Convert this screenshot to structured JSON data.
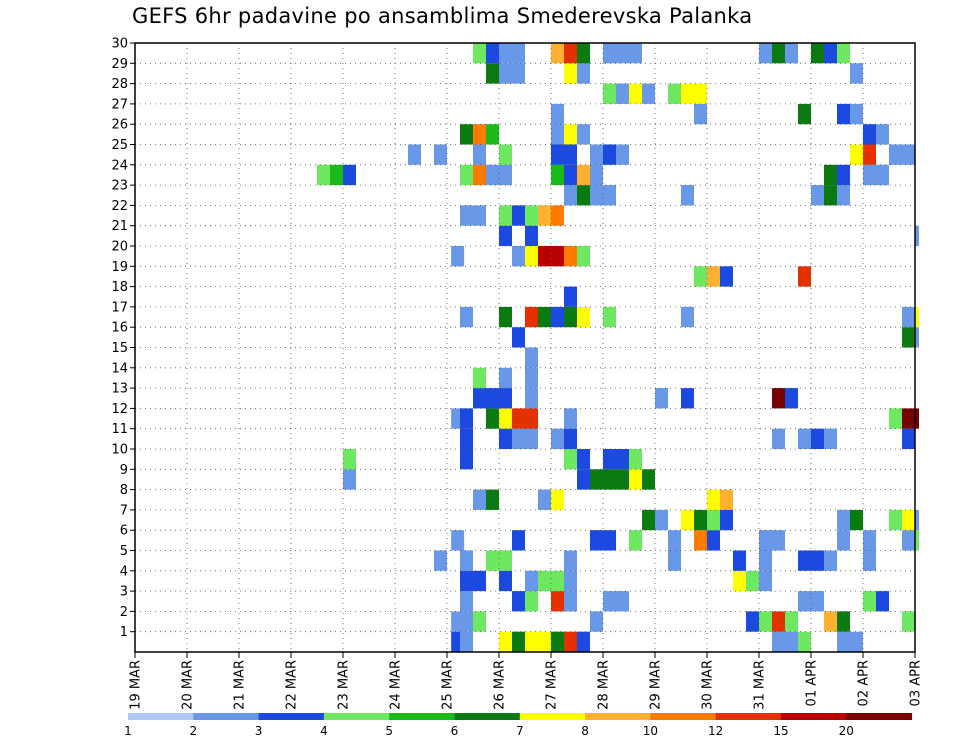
{
  "chart_data": {
    "type": "heatmap",
    "title": "GEFS 6hr padavine po ansamblima Smederevska Palanka",
    "x_tick_labels": [
      "19 MAR",
      "20 MAR",
      "21 MAR",
      "22 MAR",
      "23 MAR",
      "24 MAR",
      "25 MAR",
      "26 MAR",
      "27 MAR",
      "28 MAR",
      "29 MAR",
      "30 MAR",
      "31 MAR",
      "01 APR",
      "02 APR",
      "03 APR"
    ],
    "y_tick_labels": [
      "1",
      "2",
      "3",
      "4",
      "5",
      "6",
      "7",
      "8",
      "9",
      "10",
      "11",
      "12",
      "13",
      "14",
      "15",
      "16",
      "17",
      "18",
      "19",
      "20",
      "21",
      "22",
      "23",
      "24",
      "25",
      "26",
      "27",
      "28",
      "29",
      "30"
    ],
    "y_range": [
      0,
      30
    ],
    "x_range_days": [
      0,
      15
    ],
    "time_step_hours": 6,
    "grid": true,
    "legend_placement": "bottom",
    "color_scale": {
      "bounds": [
        "1",
        "2",
        "3",
        "4",
        "5",
        "6",
        "7",
        "8",
        "10",
        "12",
        "15",
        "20"
      ],
      "colors": [
        "#b0c8f5",
        "#6a98e8",
        "#1c4ae0",
        "#6ee860",
        "#18bb18",
        "#0b7a10",
        "#ffff00",
        "#ffb030",
        "#ff7b00",
        "#e33200",
        "#b80000",
        "#780000"
      ]
    },
    "cells": [
      [
        1,
        6.08,
        2
      ],
      [
        1,
        6.25,
        1
      ],
      [
        1,
        7.0,
        6
      ],
      [
        1,
        7.25,
        5
      ],
      [
        1,
        7.5,
        6
      ],
      [
        1,
        7.75,
        6
      ],
      [
        1,
        8.0,
        5
      ],
      [
        1,
        8.25,
        9
      ],
      [
        1,
        8.5,
        2
      ],
      [
        1,
        12.25,
        1
      ],
      [
        1,
        12.5,
        1
      ],
      [
        1,
        12.75,
        3
      ],
      [
        1,
        13.5,
        1
      ],
      [
        1,
        13.75,
        1
      ],
      [
        2,
        6.08,
        1
      ],
      [
        2,
        6.25,
        1
      ],
      [
        2,
        6.5,
        3
      ],
      [
        2,
        8.75,
        1
      ],
      [
        2,
        11.75,
        2
      ],
      [
        2,
        12.0,
        3
      ],
      [
        2,
        12.25,
        9
      ],
      [
        2,
        12.5,
        3
      ],
      [
        2,
        13.25,
        7
      ],
      [
        2,
        13.5,
        5
      ],
      [
        2,
        14.75,
        3
      ],
      [
        3,
        6.25,
        1
      ],
      [
        3,
        7.25,
        2
      ],
      [
        3,
        7.5,
        3
      ],
      [
        3,
        8.0,
        9
      ],
      [
        3,
        8.25,
        1
      ],
      [
        3,
        9.0,
        1
      ],
      [
        3,
        9.25,
        1
      ],
      [
        3,
        12.75,
        1
      ],
      [
        3,
        13.0,
        1
      ],
      [
        3,
        14.0,
        3
      ],
      [
        3,
        14.25,
        2
      ],
      [
        4,
        6.25,
        2
      ],
      [
        4,
        6.5,
        2
      ],
      [
        4,
        7.0,
        2
      ],
      [
        4,
        7.5,
        1
      ],
      [
        4,
        7.75,
        3
      ],
      [
        4,
        8.0,
        3
      ],
      [
        4,
        8.25,
        1
      ],
      [
        4,
        11.5,
        6
      ],
      [
        4,
        11.75,
        3
      ],
      [
        4,
        12.0,
        1
      ],
      [
        5,
        5.75,
        1
      ],
      [
        5,
        6.25,
        1
      ],
      [
        5,
        6.75,
        3
      ],
      [
        5,
        7.0,
        3
      ],
      [
        5,
        8.25,
        1
      ],
      [
        5,
        10.25,
        1
      ],
      [
        5,
        11.5,
        2
      ],
      [
        5,
        12.0,
        1
      ],
      [
        5,
        12.75,
        2
      ],
      [
        5,
        13.0,
        2
      ],
      [
        5,
        13.25,
        1
      ],
      [
        5,
        14.0,
        1
      ],
      [
        6,
        6.08,
        1
      ],
      [
        6,
        7.25,
        2
      ],
      [
        6,
        8.75,
        2
      ],
      [
        6,
        9.0,
        2
      ],
      [
        6,
        9.5,
        3
      ],
      [
        6,
        10.25,
        1
      ],
      [
        6,
        10.75,
        8
      ],
      [
        6,
        11.0,
        2
      ],
      [
        6,
        12.0,
        1
      ],
      [
        6,
        12.25,
        1
      ],
      [
        6,
        13.5,
        1
      ],
      [
        6,
        14.0,
        1
      ],
      [
        6,
        14.75,
        1
      ],
      [
        6,
        15.0,
        3
      ],
      [
        7,
        9.75,
        5
      ],
      [
        7,
        10.0,
        1
      ],
      [
        7,
        10.5,
        6
      ],
      [
        7,
        10.75,
        5
      ],
      [
        7,
        11.0,
        3
      ],
      [
        7,
        11.25,
        2
      ],
      [
        7,
        13.5,
        1
      ],
      [
        7,
        13.75,
        5
      ],
      [
        7,
        14.5,
        3
      ],
      [
        7,
        14.75,
        6
      ],
      [
        7,
        15.0,
        1
      ],
      [
        8,
        6.5,
        1
      ],
      [
        8,
        6.75,
        5
      ],
      [
        8,
        7.75,
        1
      ],
      [
        8,
        8.0,
        6
      ],
      [
        8,
        11.0,
        6
      ],
      [
        8,
        11.25,
        7
      ],
      [
        9,
        4.0,
        1
      ],
      [
        9,
        8.5,
        2
      ],
      [
        9,
        8.75,
        5
      ],
      [
        9,
        9.0,
        5
      ],
      [
        9,
        9.25,
        5
      ],
      [
        9,
        9.5,
        6
      ],
      [
        9,
        9.75,
        5
      ],
      [
        10,
        4.0,
        3
      ],
      [
        10,
        6.25,
        2
      ],
      [
        10,
        8.25,
        3
      ],
      [
        10,
        8.5,
        2
      ],
      [
        10,
        9.0,
        2
      ],
      [
        10,
        9.25,
        2
      ],
      [
        10,
        9.5,
        3
      ],
      [
        11,
        6.25,
        2
      ],
      [
        11,
        7.0,
        2
      ],
      [
        11,
        7.25,
        1
      ],
      [
        11,
        7.5,
        1
      ],
      [
        11,
        8.0,
        1
      ],
      [
        11,
        8.25,
        2
      ],
      [
        11,
        12.25,
        1
      ],
      [
        11,
        12.75,
        1
      ],
      [
        11,
        13.0,
        2
      ],
      [
        11,
        13.25,
        1
      ],
      [
        11,
        14.75,
        2
      ],
      [
        12,
        6.08,
        1
      ],
      [
        12,
        6.25,
        2
      ],
      [
        12,
        6.75,
        5
      ],
      [
        12,
        7.0,
        6
      ],
      [
        12,
        7.25,
        9
      ],
      [
        12,
        7.5,
        9
      ],
      [
        12,
        8.25,
        1
      ],
      [
        12,
        14.5,
        3
      ],
      [
        12,
        14.75,
        11
      ],
      [
        12,
        15.0,
        11
      ],
      [
        13,
        6.5,
        2
      ],
      [
        13,
        6.75,
        2
      ],
      [
        13,
        7.0,
        2
      ],
      [
        13,
        7.5,
        1
      ],
      [
        13,
        10.0,
        1
      ],
      [
        13,
        10.5,
        2
      ],
      [
        13,
        12.25,
        11
      ],
      [
        13,
        12.5,
        2
      ],
      [
        14,
        6.5,
        3
      ],
      [
        14,
        7.0,
        1
      ],
      [
        14,
        7.5,
        1
      ],
      [
        15,
        7.5,
        1
      ],
      [
        16,
        7.25,
        2
      ],
      [
        16,
        14.75,
        5
      ],
      [
        16,
        15.0,
        1
      ],
      [
        17,
        6.25,
        1
      ],
      [
        17,
        7.0,
        5
      ],
      [
        17,
        7.5,
        9
      ],
      [
        17,
        7.75,
        5
      ],
      [
        17,
        8.0,
        2
      ],
      [
        17,
        8.25,
        5
      ],
      [
        17,
        8.5,
        6
      ],
      [
        17,
        9.0,
        3
      ],
      [
        17,
        10.5,
        1
      ],
      [
        17,
        14.75,
        1
      ],
      [
        17,
        15.0,
        6
      ],
      [
        17,
        15.25,
        8
      ],
      [
        18,
        8.25,
        2
      ],
      [
        19,
        10.75,
        3
      ],
      [
        19,
        11.0,
        7
      ],
      [
        19,
        11.25,
        2
      ],
      [
        19,
        12.75,
        9
      ],
      [
        20,
        6.08,
        1
      ],
      [
        20,
        7.25,
        1
      ],
      [
        20,
        7.5,
        6
      ],
      [
        20,
        7.75,
        10
      ],
      [
        20,
        8.0,
        10
      ],
      [
        20,
        8.25,
        8
      ],
      [
        20,
        8.5,
        3
      ],
      [
        21,
        7.0,
        2
      ],
      [
        21,
        7.5,
        2
      ],
      [
        21,
        15.0,
        1
      ],
      [
        22,
        6.25,
        1
      ],
      [
        22,
        6.5,
        1
      ],
      [
        22,
        7.0,
        3
      ],
      [
        22,
        7.25,
        2
      ],
      [
        22,
        7.5,
        3
      ],
      [
        22,
        7.75,
        7
      ],
      [
        22,
        8.0,
        8
      ],
      [
        23,
        8.25,
        1
      ],
      [
        23,
        8.5,
        5
      ],
      [
        23,
        8.75,
        1
      ],
      [
        23,
        9.0,
        1
      ],
      [
        23,
        10.5,
        1
      ],
      [
        23,
        13.0,
        1
      ],
      [
        23,
        13.25,
        5
      ],
      [
        23,
        13.5,
        1
      ],
      [
        24,
        3.5,
        3
      ],
      [
        24,
        3.75,
        4
      ],
      [
        24,
        4.0,
        2
      ],
      [
        24,
        6.25,
        3
      ],
      [
        24,
        6.5,
        8
      ],
      [
        24,
        6.75,
        1
      ],
      [
        24,
        7.0,
        1
      ],
      [
        24,
        8.0,
        4
      ],
      [
        24,
        8.25,
        2
      ],
      [
        24,
        8.5,
        7
      ],
      [
        24,
        8.75,
        1
      ],
      [
        24,
        13.25,
        5
      ],
      [
        24,
        13.5,
        2
      ],
      [
        24,
        14.0,
        1
      ],
      [
        24,
        14.25,
        1
      ],
      [
        25,
        5.25,
        1
      ],
      [
        25,
        5.75,
        1
      ],
      [
        25,
        6.5,
        1
      ],
      [
        25,
        7.0,
        3
      ],
      [
        25,
        8.0,
        2
      ],
      [
        25,
        8.25,
        2
      ],
      [
        25,
        8.75,
        1
      ],
      [
        25,
        9.0,
        2
      ],
      [
        25,
        9.25,
        1
      ],
      [
        25,
        13.75,
        6
      ],
      [
        25,
        14.0,
        9
      ],
      [
        25,
        14.5,
        1
      ],
      [
        25,
        14.75,
        1
      ],
      [
        26,
        6.25,
        5
      ],
      [
        26,
        6.5,
        8
      ],
      [
        26,
        6.75,
        4
      ],
      [
        26,
        8.0,
        1
      ],
      [
        26,
        8.25,
        6
      ],
      [
        26,
        8.5,
        1
      ],
      [
        26,
        14.0,
        2
      ],
      [
        26,
        14.25,
        1
      ],
      [
        27,
        8.0,
        1
      ],
      [
        27,
        10.75,
        1
      ],
      [
        27,
        12.75,
        5
      ],
      [
        27,
        13.5,
        2
      ],
      [
        27,
        13.75,
        1
      ],
      [
        28,
        9.0,
        3
      ],
      [
        28,
        9.25,
        1
      ],
      [
        28,
        9.5,
        6
      ],
      [
        28,
        9.75,
        1
      ],
      [
        28,
        10.25,
        3
      ],
      [
        28,
        10.5,
        6
      ],
      [
        28,
        10.75,
        6
      ],
      [
        29,
        6.75,
        5
      ],
      [
        29,
        7.0,
        1
      ],
      [
        29,
        7.25,
        1
      ],
      [
        29,
        8.25,
        6
      ],
      [
        29,
        8.5,
        1
      ],
      [
        29,
        13.75,
        1
      ],
      [
        30,
        6.5,
        3
      ],
      [
        30,
        6.75,
        2
      ],
      [
        30,
        7.0,
        1
      ],
      [
        30,
        7.25,
        1
      ],
      [
        30,
        8.0,
        7
      ],
      [
        30,
        8.25,
        9
      ],
      [
        30,
        8.5,
        5
      ],
      [
        30,
        9.0,
        1
      ],
      [
        30,
        9.25,
        1
      ],
      [
        30,
        9.5,
        1
      ],
      [
        30,
        12.0,
        1
      ],
      [
        30,
        12.25,
        5
      ],
      [
        30,
        12.5,
        1
      ],
      [
        30,
        13.0,
        5
      ],
      [
        30,
        13.25,
        2
      ],
      [
        30,
        13.5,
        3
      ]
    ]
  }
}
